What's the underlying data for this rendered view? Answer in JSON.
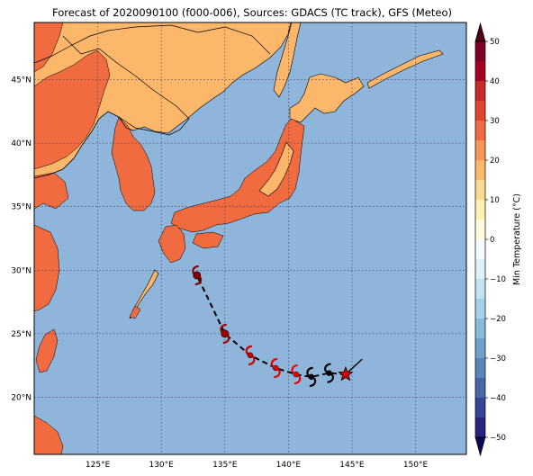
{
  "title": "Forecast of 2020090100 (f000-006), Sources: GDACS (TC track), GFS (Meteo)",
  "map": {
    "lon_range": [
      120,
      154
    ],
    "lat_range": [
      15.5,
      49.5
    ],
    "lon_ticks": [
      125,
      130,
      135,
      140,
      145,
      150
    ],
    "lat_ticks": [
      20,
      25,
      30,
      35,
      40,
      45
    ],
    "lon_tick_labels": [
      "125°E",
      "130°E",
      "135°E",
      "140°E",
      "145°E",
      "150°E"
    ],
    "lat_tick_labels": [
      "20°N",
      "25°N",
      "30°N",
      "35°N",
      "40°N",
      "45°N"
    ],
    "grid": "dotted",
    "colors": {
      "ocean": "#8fb5da",
      "land_cool": "#fdb76b",
      "land_warm": "#f16b40",
      "coast": "#000000"
    }
  },
  "track": {
    "points": [
      {
        "lon": 144.5,
        "lat": 21.8,
        "marker": "current-star",
        "color": "#d40000"
      },
      {
        "lon": 143.2,
        "lat": 21.9,
        "marker": "tc-symbol",
        "color": "#000000"
      },
      {
        "lon": 141.8,
        "lat": 21.6,
        "marker": "tc-symbol",
        "color": "#000000"
      },
      {
        "lon": 140.6,
        "lat": 21.8,
        "marker": "tc-symbol",
        "color": "#ee0000"
      },
      {
        "lon": 139.0,
        "lat": 22.3,
        "marker": "tc-symbol",
        "color": "#e00000"
      },
      {
        "lon": 137.0,
        "lat": 23.3,
        "marker": "tc-symbol",
        "color": "#c80000"
      },
      {
        "lon": 135.0,
        "lat": 25.0,
        "marker": "tc-symbol",
        "color": "#9e0000"
      },
      {
        "lon": 132.8,
        "lat": 29.6,
        "marker": "tc-symbol",
        "color": "#800000"
      }
    ],
    "past_segment": [
      [
        145.8,
        23.0
      ],
      [
        144.5,
        21.8
      ]
    ]
  },
  "colorbar": {
    "title": "Min Temperature (°C)",
    "min": -50,
    "max": 50,
    "ticks": [
      "50",
      "40",
      "30",
      "20",
      "10",
      "0",
      "−10",
      "−20",
      "−30",
      "−40",
      "−50"
    ],
    "bins": [
      {
        "from": 45,
        "to": 50,
        "color": "#7e0023"
      },
      {
        "from": 40,
        "to": 45,
        "color": "#a50026"
      },
      {
        "from": 35,
        "to": 40,
        "color": "#c62b27"
      },
      {
        "from": 30,
        "to": 35,
        "color": "#e0452e"
      },
      {
        "from": 25,
        "to": 30,
        "color": "#f16b40"
      },
      {
        "from": 20,
        "to": 25,
        "color": "#f99555"
      },
      {
        "from": 15,
        "to": 20,
        "color": "#fdb76b"
      },
      {
        "from": 10,
        "to": 15,
        "color": "#fed88c"
      },
      {
        "from": 5,
        "to": 10,
        "color": "#fff1b3"
      },
      {
        "from": 0,
        "to": 5,
        "color": "#fffbdd"
      },
      {
        "from": -5,
        "to": 0,
        "color": "#f3fbfd"
      },
      {
        "from": -10,
        "to": -5,
        "color": "#def1f7"
      },
      {
        "from": -15,
        "to": -10,
        "color": "#c2e3ef"
      },
      {
        "from": -20,
        "to": -15,
        "color": "#a3d1e5"
      },
      {
        "from": -25,
        "to": -20,
        "color": "#86bbd9"
      },
      {
        "from": -30,
        "to": -25,
        "color": "#6ea2ca"
      },
      {
        "from": -35,
        "to": -30,
        "color": "#5a85b9"
      },
      {
        "from": -40,
        "to": -35,
        "color": "#4866a8"
      },
      {
        "from": -45,
        "to": -40,
        "color": "#364597"
      },
      {
        "from": -50,
        "to": -45,
        "color": "#27237f"
      }
    ],
    "under_color": "#0b0a55",
    "over_color": "#4d0013"
  }
}
